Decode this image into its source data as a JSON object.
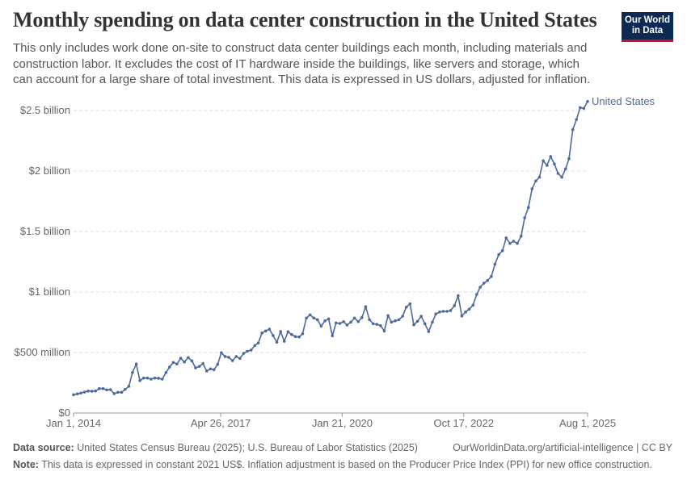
{
  "header": {
    "title": "Monthly spending on data center construction in the United States",
    "subtitle": "This only includes work done on-site to construct data center buildings each month, including materials and construction labor. It excludes the cost of IT hardware inside the buildings, like servers and storage, which can account for a large share of total investment. This data is expressed in US dollars, adjusted for inflation.",
    "logo": "Our World in Data"
  },
  "footer": {
    "source_label": "Data source:",
    "source": "United States Census Bureau (2025); U.S. Bureau of Labor Statistics (2025)",
    "url": "OurWorldinData.org/artificial-intelligence | CC BY",
    "note_label": "Note:",
    "note": "This data is expressed in constant 2021 US$. Inflation adjustment is based on the Producer Price Index (PPI) for new office construction."
  },
  "chart_data": {
    "type": "line",
    "title": "Monthly spending on data center construction in the United States",
    "xlabel": "",
    "ylabel": "",
    "ylim": [
      0,
      2500000000
    ],
    "xlim": [
      "2014-01",
      "2025-08"
    ],
    "grid": "horizontal dashed",
    "legend": "inline-end",
    "color": "#4c6a9c",
    "y_ticks": [
      {
        "v": 0,
        "label": "$0"
      },
      {
        "v": 500000000,
        "label": "$500 million"
      },
      {
        "v": 1000000000,
        "label": "$1 billion"
      },
      {
        "v": 1500000000,
        "label": "$1.5 billion"
      },
      {
        "v": 2000000000,
        "label": "$2 billion"
      },
      {
        "v": 2500000000,
        "label": "$2.5 billion"
      }
    ],
    "x_ticks": [
      {
        "d": "2014-01-01",
        "label": "Jan 1, 2014"
      },
      {
        "d": "2017-04-26",
        "label": "Apr 26, 2017"
      },
      {
        "d": "2020-01-21",
        "label": "Jan 21, 2020"
      },
      {
        "d": "2022-10-17",
        "label": "Oct 17, 2022"
      },
      {
        "d": "2025-08-01",
        "label": "Aug 1, 2025"
      }
    ],
    "series": [
      {
        "name": "United States",
        "unit": "million US$",
        "values": [
          151,
          158,
          165,
          173,
          182,
          180,
          182,
          202,
          202,
          191,
          193,
          160,
          171,
          171,
          195,
          221,
          335,
          405,
          268,
          289,
          289,
          280,
          289,
          287,
          280,
          335,
          380,
          418,
          405,
          453,
          422,
          458,
          431,
          373,
          385,
          409,
          347,
          365,
          358,
          402,
          498,
          467,
          460,
          433,
          467,
          451,
          493,
          510,
          520,
          558,
          578,
          662,
          678,
          693,
          640,
          585,
          673,
          593,
          671,
          649,
          631,
          629,
          655,
          785,
          811,
          785,
          771,
          718,
          762,
          778,
          638,
          745,
          740,
          755,
          727,
          751,
          785,
          755,
          789,
          878,
          771,
          738,
          733,
          722,
          678,
          805,
          751,
          762,
          771,
          800,
          875,
          902,
          729,
          758,
          800,
          738,
          673,
          751,
          818,
          835,
          840,
          840,
          847,
          887,
          969,
          802,
          835,
          858,
          891,
          980,
          1040,
          1073,
          1095,
          1129,
          1231,
          1309,
          1342,
          1447,
          1402,
          1420,
          1402,
          1462,
          1613,
          1698,
          1853,
          1918,
          1949,
          2085,
          2047,
          2120,
          2058,
          1980,
          1949,
          2018,
          2102,
          2342,
          2425,
          2524,
          2518,
          2575
        ]
      }
    ]
  }
}
